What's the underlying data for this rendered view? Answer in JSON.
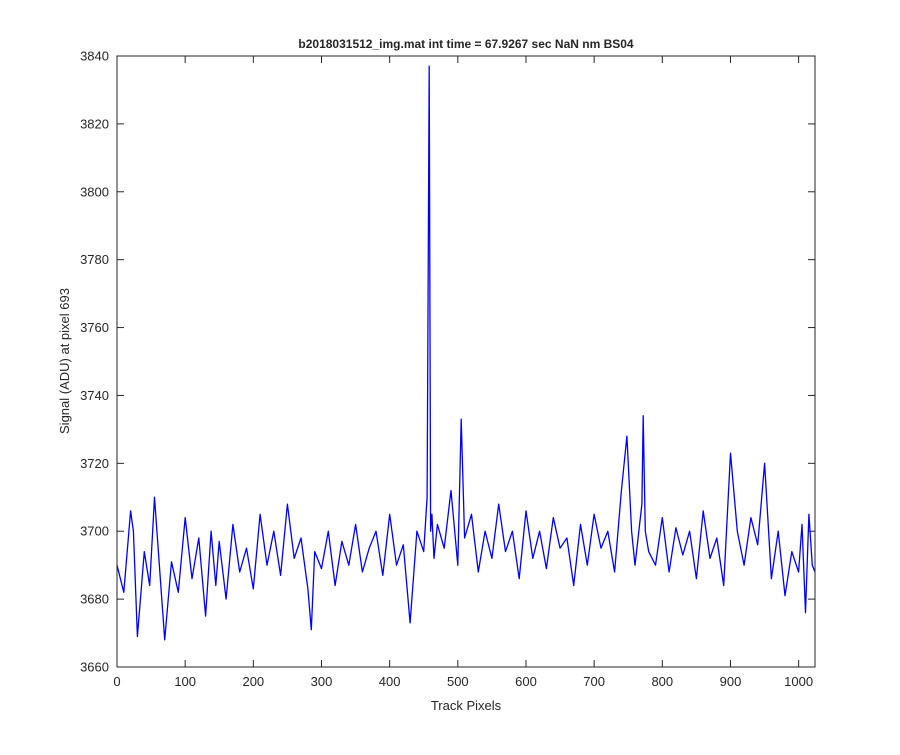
{
  "figure": {
    "title": "b2018031512_img.mat int time = 67.9267 sec  NaN nm BS04"
  },
  "chart_data": {
    "type": "line",
    "title": "b2018031512_img.mat int time = 67.9267 sec  NaN nm BS04",
    "xlabel": "Track Pixels",
    "ylabel": "Signal (ADU) at pixel 693",
    "xlim": [
      0,
      1024
    ],
    "ylim": [
      3660,
      3840
    ],
    "xticks": [
      0,
      100,
      200,
      300,
      400,
      500,
      600,
      700,
      800,
      900,
      1000
    ],
    "yticks": [
      3660,
      3680,
      3700,
      3720,
      3740,
      3760,
      3780,
      3800,
      3820,
      3840
    ],
    "grid": false,
    "series_color": "#0000ff",
    "axis_color": "#262626",
    "series": [
      {
        "x": [
          0,
          10,
          20,
          24,
          30,
          40,
          48,
          55,
          60,
          70,
          80,
          90,
          100,
          110,
          120,
          130,
          138,
          145,
          150,
          160,
          170,
          180,
          190,
          200,
          210,
          220,
          230,
          240,
          250,
          260,
          270,
          280,
          285,
          290,
          300,
          310,
          320,
          330,
          340,
          350,
          360,
          370,
          380,
          390,
          400,
          410,
          420,
          430,
          440,
          450,
          455,
          458,
          460,
          462,
          465,
          470,
          480,
          490,
          500,
          505,
          510,
          520,
          530,
          540,
          550,
          560,
          570,
          580,
          590,
          600,
          610,
          620,
          630,
          640,
          650,
          660,
          670,
          680,
          690,
          700,
          710,
          720,
          730,
          740,
          748,
          755,
          760,
          770,
          772,
          775,
          780,
          790,
          800,
          810,
          820,
          830,
          840,
          850,
          860,
          870,
          880,
          890,
          900,
          910,
          920,
          930,
          940,
          950,
          960,
          970,
          980,
          990,
          1000,
          1005,
          1010,
          1015,
          1020,
          1024
        ],
        "y": [
          3690,
          3682,
          3706,
          3700,
          3669,
          3694,
          3684,
          3710,
          3696,
          3668,
          3691,
          3682,
          3704,
          3686,
          3698,
          3675,
          3700,
          3684,
          3697,
          3680,
          3702,
          3688,
          3695,
          3683,
          3705,
          3690,
          3700,
          3687,
          3708,
          3692,
          3698,
          3683,
          3671,
          3694,
          3689,
          3700,
          3684,
          3697,
          3690,
          3702,
          3688,
          3695,
          3700,
          3687,
          3705,
          3690,
          3696,
          3673,
          3700,
          3694,
          3710,
          3837,
          3700,
          3705,
          3692,
          3702,
          3695,
          3712,
          3690,
          3733,
          3698,
          3705,
          3688,
          3700,
          3692,
          3708,
          3694,
          3700,
          3686,
          3706,
          3692,
          3700,
          3689,
          3704,
          3695,
          3698,
          3684,
          3702,
          3690,
          3705,
          3695,
          3700,
          3688,
          3712,
          3728,
          3700,
          3690,
          3708,
          3734,
          3700,
          3694,
          3690,
          3704,
          3688,
          3701,
          3693,
          3700,
          3686,
          3706,
          3692,
          3698,
          3684,
          3723,
          3700,
          3690,
          3704,
          3696,
          3720,
          3686,
          3700,
          3681,
          3694,
          3688,
          3702,
          3676,
          3705,
          3690,
          3688
        ]
      }
    ]
  }
}
